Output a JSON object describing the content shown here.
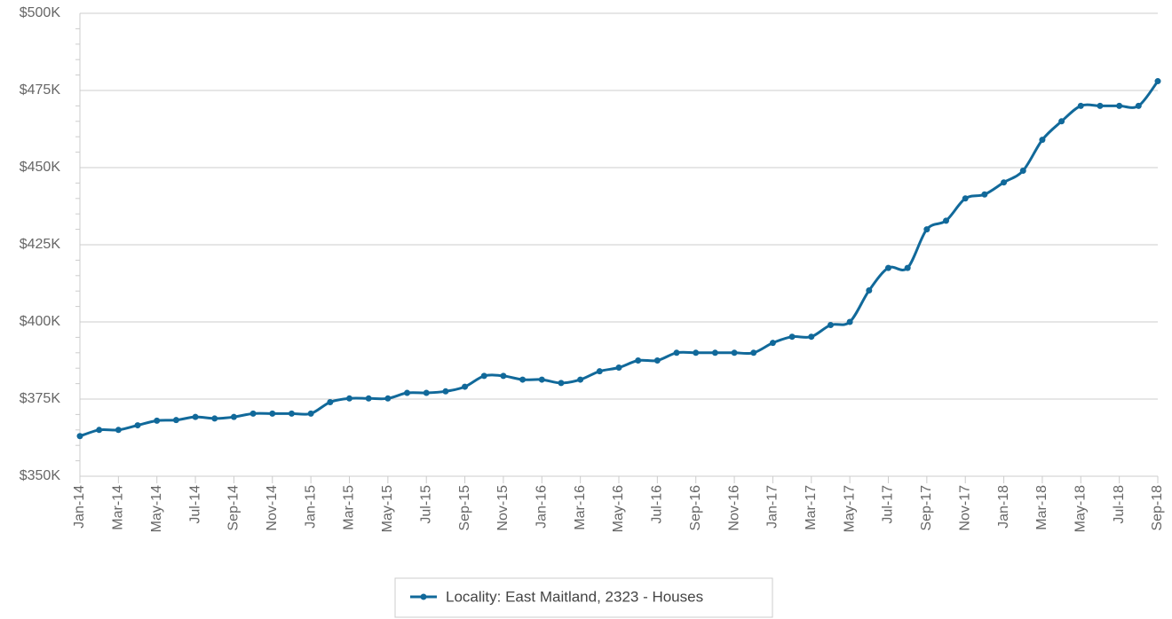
{
  "chart_data": {
    "type": "line",
    "categories": [
      "Jan-14",
      null,
      "Mar-14",
      null,
      "May-14",
      null,
      "Jul-14",
      null,
      "Sep-14",
      null,
      "Nov-14",
      null,
      "Jan-15",
      null,
      "Mar-15",
      null,
      "May-15",
      null,
      "Jul-15",
      null,
      "Sep-15",
      null,
      "Nov-15",
      null,
      "Jan-16",
      null,
      "Mar-16",
      null,
      "May-16",
      null,
      "Jul-16",
      null,
      "Sep-16",
      null,
      "Nov-16",
      null,
      "Jan-17",
      null,
      "Mar-17",
      null,
      "May-17",
      null,
      "Jul-17",
      null,
      "Sep-17",
      null,
      "Nov-17",
      null,
      "Jan-18",
      null,
      "Mar-18",
      null,
      "May-18",
      null,
      "Jul-18",
      null,
      "Sep-18"
    ],
    "series": [
      {
        "name": "Locality: East Maitland, 2323 - Houses",
        "color": "#11699a",
        "values": [
          363000,
          365000,
          365000,
          366500,
          368000,
          368200,
          369200,
          368700,
          369200,
          370300,
          370300,
          370300,
          370300,
          374000,
          375200,
          375200,
          375200,
          377000,
          377000,
          377500,
          379000,
          382500,
          382500,
          381300,
          381300,
          380200,
          381300,
          384000,
          385200,
          387500,
          387500,
          390000,
          390000,
          390000,
          390000,
          390000,
          393200,
          395200,
          395200,
          399000,
          400000,
          410200,
          417500,
          417500,
          430000,
          432800,
          440000,
          441300,
          445200,
          449000,
          459000,
          465000,
          470000,
          470000,
          470000,
          470000,
          478000
        ]
      }
    ],
    "ylim": [
      350000,
      500000
    ],
    "yticks": [
      {
        "value": 350000,
        "label": "$350K"
      },
      {
        "value": 375000,
        "label": "$375K"
      },
      {
        "value": 400000,
        "label": "$400K"
      },
      {
        "value": 425000,
        "label": "$425K"
      },
      {
        "value": 450000,
        "label": "$450K"
      },
      {
        "value": 475000,
        "label": "$475K"
      },
      {
        "value": 500000,
        "label": "$500K"
      }
    ],
    "grid": true
  }
}
